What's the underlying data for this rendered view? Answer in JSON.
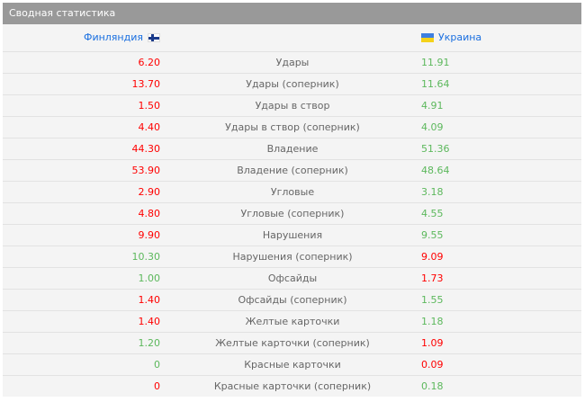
{
  "title": "Сводная статистика",
  "teams": {
    "home": {
      "name": "Финляндия",
      "flag": "finland-flag"
    },
    "away": {
      "name": "Украина",
      "flag": "ukraine-flag"
    }
  },
  "colors": {
    "better": "#5cb85c",
    "worse": "#ff0000",
    "link": "#1a6fe0",
    "header": "#999999"
  },
  "rows": [
    {
      "label": "Удары",
      "home": "6.20",
      "away": "11.91",
      "hc": "red",
      "ac": "green"
    },
    {
      "label": "Удары (соперник)",
      "home": "13.70",
      "away": "11.64",
      "hc": "red",
      "ac": "green"
    },
    {
      "label": "Удары в створ",
      "home": "1.50",
      "away": "4.91",
      "hc": "red",
      "ac": "green"
    },
    {
      "label": "Удары в створ (соперник)",
      "home": "4.40",
      "away": "4.09",
      "hc": "red",
      "ac": "green"
    },
    {
      "label": "Владение",
      "home": "44.30",
      "away": "51.36",
      "hc": "red",
      "ac": "green"
    },
    {
      "label": "Владение (соперник)",
      "home": "53.90",
      "away": "48.64",
      "hc": "red",
      "ac": "green"
    },
    {
      "label": "Угловые",
      "home": "2.90",
      "away": "3.18",
      "hc": "red",
      "ac": "green"
    },
    {
      "label": "Угловые (соперник)",
      "home": "4.80",
      "away": "4.55",
      "hc": "red",
      "ac": "green"
    },
    {
      "label": "Нарушения",
      "home": "9.90",
      "away": "9.55",
      "hc": "red",
      "ac": "green"
    },
    {
      "label": "Нарушения (соперник)",
      "home": "10.30",
      "away": "9.09",
      "hc": "green",
      "ac": "red"
    },
    {
      "label": "Офсайды",
      "home": "1.00",
      "away": "1.73",
      "hc": "green",
      "ac": "red"
    },
    {
      "label": "Офсайды (соперник)",
      "home": "1.40",
      "away": "1.55",
      "hc": "red",
      "ac": "green"
    },
    {
      "label": "Желтые карточки",
      "home": "1.40",
      "away": "1.18",
      "hc": "red",
      "ac": "green"
    },
    {
      "label": "Желтые карточки (соперник)",
      "home": "1.20",
      "away": "1.09",
      "hc": "green",
      "ac": "red"
    },
    {
      "label": "Красные карточки",
      "home": "0",
      "away": "0.09",
      "hc": "green",
      "ac": "red"
    },
    {
      "label": "Красные карточки (соперник)",
      "home": "0",
      "away": "0.18",
      "hc": "red",
      "ac": "green"
    }
  ]
}
